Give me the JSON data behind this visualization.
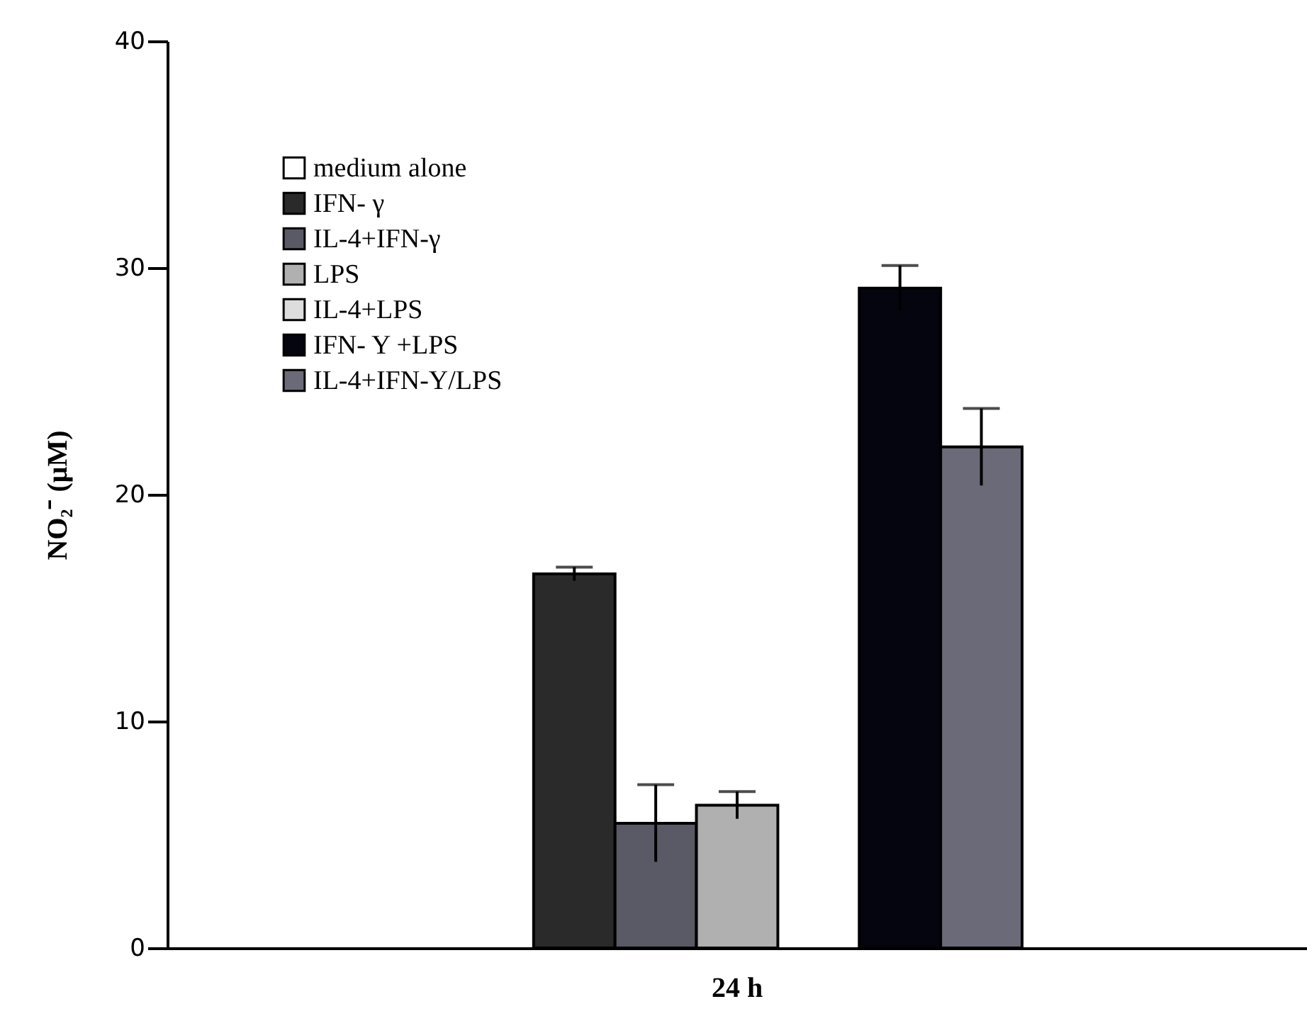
{
  "chart_data": {
    "type": "bar",
    "categories": [
      "24 h"
    ],
    "ylabel": "NO₂⁻ (μM)",
    "ylim": [
      0,
      40
    ],
    "yticks": [
      0,
      10,
      20,
      30,
      40
    ],
    "grid": false,
    "legend": "top left",
    "series": [
      {
        "name": "medium alone",
        "color": "#ffffff",
        "values": [
          null
        ]
      },
      {
        "name": "IFN- γ",
        "color": "#2a2a2a",
        "values": [
          16.5
        ],
        "errors": [
          0.3
        ]
      },
      {
        "name": "IL-4+IFN-γ",
        "color": "#5a5a66",
        "values": [
          5.5
        ],
        "errors": [
          1.7
        ]
      },
      {
        "name": "LPS",
        "color": "#b0b0b0",
        "values": [
          6.3
        ],
        "errors": [
          0.6
        ]
      },
      {
        "name": "IL-4+LPS",
        "color": "#dddddd",
        "values": [
          null
        ]
      },
      {
        "name": "IFN- Y +LPS",
        "color": "#050510",
        "values": [
          29.1
        ],
        "errors": [
          1.0
        ]
      },
      {
        "name": "IL-4+IFN-Y/LPS",
        "color": "#6a6a78",
        "values": [
          22.1
        ],
        "errors": [
          1.7
        ]
      }
    ]
  }
}
